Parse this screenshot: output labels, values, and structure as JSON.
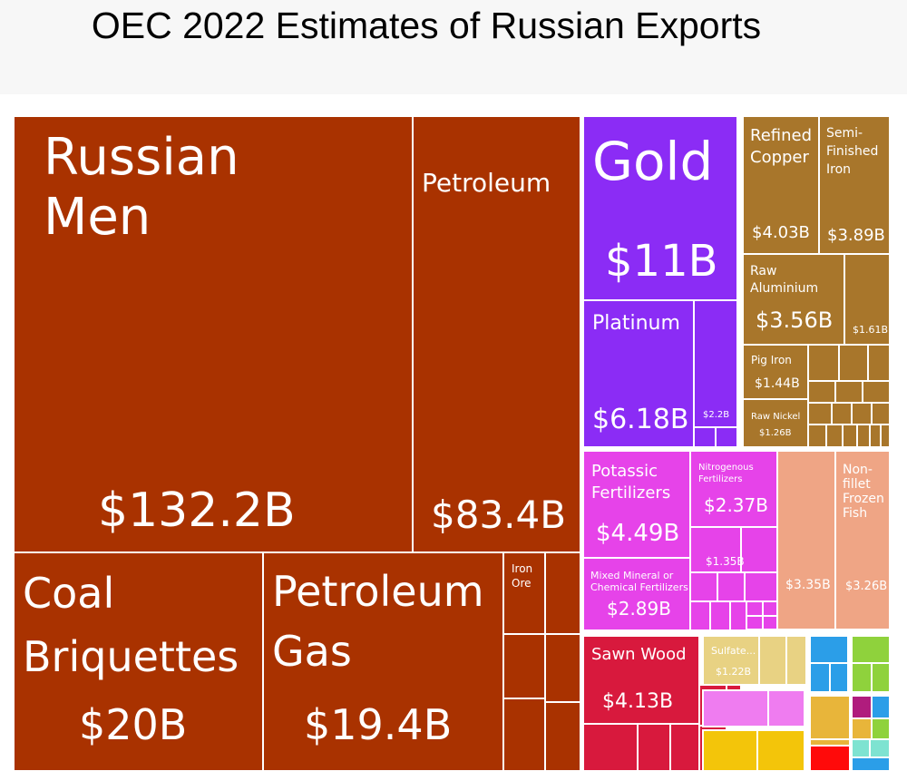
{
  "page": {
    "title": "OEC 2022 Estimates of Russian Exports"
  },
  "colors": {
    "minerals": "#a93200",
    "metals": "#a8762b",
    "precious": "#8b2cf5",
    "chemicals": "#e643e9",
    "foodstuffs": "#efa585",
    "wood": "#d8193d",
    "chemicals_light": "#ef7cf0",
    "yellow": "#f3c50a",
    "sand": "#e8d283",
    "blue": "#2b9ee8",
    "green": "#8fd23c",
    "magenta": "#b01c7d",
    "orange": "#e8b53a",
    "teal": "#7ee3d1",
    "red": "#ff0a0a"
  },
  "chart_data": {
    "type": "treemap",
    "title": "OEC 2022 Estimates of Russian Exports",
    "units": "USD",
    "items": [
      {
        "label": "Russian Men",
        "value_label": "$132.2B",
        "value": 132.2,
        "group": "minerals"
      },
      {
        "label": "Petroleum",
        "value_label": "$83.4B",
        "value": 83.4,
        "group": "minerals"
      },
      {
        "label": "Coal Briquettes",
        "value_label": "$20B",
        "value": 20,
        "group": "minerals"
      },
      {
        "label": "Petroleum Gas",
        "value_label": "$19.4B",
        "value": 19.4,
        "group": "minerals"
      },
      {
        "label": "Iron Ore",
        "value_label": "",
        "group": "minerals"
      },
      {
        "label": "Gold",
        "value_label": "$11B",
        "value": 11,
        "group": "precious"
      },
      {
        "label": "Platinum",
        "value_label": "$6.18B",
        "value": 6.18,
        "group": "precious"
      },
      {
        "label": "",
        "value_label": "$2.2B",
        "value": 2.2,
        "group": "precious"
      },
      {
        "label": "Refined Copper",
        "value_label": "$4.03B",
        "value": 4.03,
        "group": "metals"
      },
      {
        "label": "Semi-Finished Iron",
        "value_label": "$3.89B",
        "value": 3.89,
        "group": "metals"
      },
      {
        "label": "Raw Aluminium",
        "value_label": "$3.56B",
        "value": 3.56,
        "group": "metals"
      },
      {
        "label": "",
        "value_label": "$1.61B",
        "value": 1.61,
        "group": "metals"
      },
      {
        "label": "Pig Iron",
        "value_label": "$1.44B",
        "value": 1.44,
        "group": "metals"
      },
      {
        "label": "Raw Nickel",
        "value_label": "$1.26B",
        "value": 1.26,
        "group": "metals"
      },
      {
        "label": "Potassic Fertilizers",
        "value_label": "$4.49B",
        "value": 4.49,
        "group": "chemicals"
      },
      {
        "label": "Nitrogenous Fertilizers",
        "value_label": "$2.37B",
        "value": 2.37,
        "group": "chemicals"
      },
      {
        "label": "",
        "value_label": "$1.35B",
        "value": 1.35,
        "group": "chemicals"
      },
      {
        "label": "Mixed Mineral or Chemical Fertilizers",
        "value_label": "$2.89B",
        "value": 2.89,
        "group": "chemicals"
      },
      {
        "label": "",
        "value_label": "$3.35B",
        "value": 3.35,
        "group": "foodstuffs"
      },
      {
        "label": "Non-fillet Frozen Fish",
        "value_label": "$3.26B",
        "value": 3.26,
        "group": "foodstuffs"
      },
      {
        "label": "Sawn Wood",
        "value_label": "$4.13B",
        "value": 4.13,
        "group": "wood"
      },
      {
        "label": "Sulfate...",
        "value_label": "$1.22B",
        "value": 1.22,
        "group": "wood"
      }
    ]
  }
}
